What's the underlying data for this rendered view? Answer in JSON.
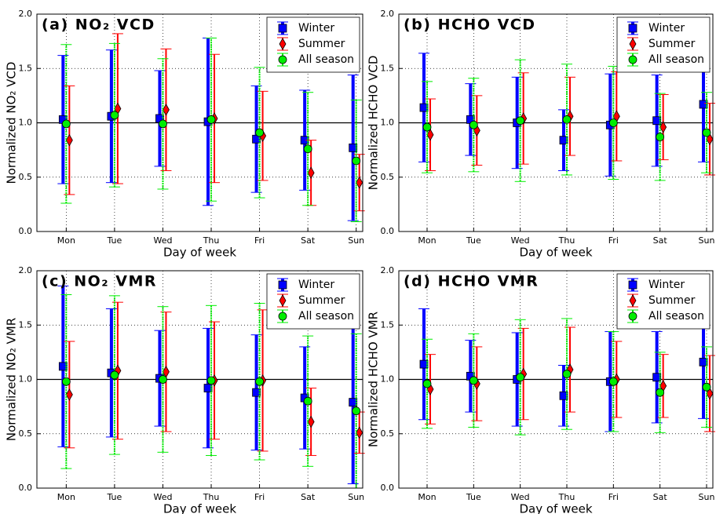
{
  "chart_data": [
    {
      "type": "errorbar",
      "title": "(a) NO₂ VCD",
      "xlabel": "Day of week",
      "ylabel": "Normalized NO₂ VCD",
      "categories": [
        "Mon",
        "Tue",
        "Wed",
        "Thu",
        "Fri",
        "Sat",
        "Sun"
      ],
      "series": [
        {
          "name": "Winter",
          "color": "#0000ff",
          "marker": "square",
          "values": [
            1.03,
            1.06,
            1.04,
            1.01,
            0.85,
            0.84,
            0.77
          ],
          "errors": [
            0.59,
            0.61,
            0.44,
            0.77,
            0.49,
            0.46,
            0.67
          ]
        },
        {
          "name": "Summer",
          "color": "#ff0000",
          "marker": "diamond",
          "values": [
            0.84,
            1.13,
            1.12,
            1.04,
            0.88,
            0.54,
            0.45
          ],
          "errors": [
            0.5,
            0.69,
            0.56,
            0.59,
            0.41,
            0.3,
            0.26
          ]
        },
        {
          "name": "All season",
          "color": "#00ee00",
          "marker": "circle",
          "values": [
            0.99,
            1.07,
            0.99,
            1.03,
            0.91,
            0.76,
            0.65
          ],
          "errors": [
            0.73,
            0.66,
            0.6,
            0.75,
            0.6,
            0.52,
            0.56
          ]
        }
      ],
      "ylim": [
        0,
        2
      ],
      "yticks": [
        {
          "value": 0,
          "label": "0.0"
        },
        0.5,
        {
          "value": 1,
          "label": "1.0"
        },
        1.5,
        {
          "value": 2,
          "label": "2.0"
        }
      ],
      "hline": 1,
      "grid": true,
      "legend": "upper right"
    },
    {
      "type": "errorbar",
      "title": "(b) HCHO VCD",
      "xlabel": "Day of week",
      "ylabel": "Normalized HCHO VCD",
      "categories": [
        "Mon",
        "Tue",
        "Wed",
        "Thu",
        "Fri",
        "Sat",
        "Sun"
      ],
      "series": [
        {
          "name": "Winter",
          "color": "#0000ff",
          "marker": "square",
          "values": [
            1.14,
            1.03,
            1.0,
            0.84,
            0.98,
            1.02,
            1.17
          ],
          "errors": [
            0.5,
            0.33,
            0.42,
            0.28,
            0.47,
            0.42,
            0.53
          ]
        },
        {
          "name": "Summer",
          "color": "#ff0000",
          "marker": "diamond",
          "values": [
            0.89,
            0.93,
            1.04,
            1.06,
            1.06,
            0.96,
            0.85
          ],
          "errors": [
            0.33,
            0.32,
            0.42,
            0.36,
            0.41,
            0.3,
            0.33
          ]
        },
        {
          "name": "All season",
          "color": "#00ee00",
          "marker": "circle",
          "values": [
            0.96,
            0.98,
            1.02,
            1.03,
            1.0,
            0.87,
            0.91
          ],
          "errors": [
            0.42,
            0.43,
            0.56,
            0.51,
            0.52,
            0.4,
            0.37
          ]
        }
      ],
      "ylim": [
        0,
        2
      ],
      "yticks": [
        {
          "value": 0,
          "label": "0.0"
        },
        0.5,
        {
          "value": 1,
          "label": "1.0"
        },
        1.5,
        {
          "value": 2,
          "label": "2.0"
        }
      ],
      "hline": 1,
      "grid": true,
      "legend": "upper right"
    },
    {
      "type": "errorbar",
      "title": "(c) NO₂ VMR",
      "xlabel": "Day of week",
      "ylabel": "Normalized NO₂ VMR",
      "categories": [
        "Mon",
        "Tue",
        "Wed",
        "Thu",
        "Fri",
        "Sat",
        "Sun"
      ],
      "series": [
        {
          "name": "Winter",
          "color": "#0000ff",
          "marker": "square",
          "values": [
            1.12,
            1.06,
            1.01,
            0.92,
            0.88,
            0.83,
            0.79
          ],
          "errors": [
            0.74,
            0.59,
            0.44,
            0.55,
            0.53,
            0.47,
            0.75
          ]
        },
        {
          "name": "Summer",
          "color": "#ff0000",
          "marker": "diamond",
          "values": [
            0.86,
            1.08,
            1.07,
            0.99,
            0.99,
            0.61,
            0.51
          ],
          "errors": [
            0.49,
            0.63,
            0.55,
            0.54,
            0.65,
            0.31,
            0.19
          ]
        },
        {
          "name": "All season",
          "color": "#00ee00",
          "marker": "circle",
          "values": [
            0.98,
            1.04,
            1.0,
            0.99,
            0.98,
            0.8,
            0.71
          ],
          "errors": [
            0.8,
            0.73,
            0.67,
            0.69,
            0.72,
            0.6,
            0.71
          ]
        }
      ],
      "ylim": [
        0,
        2
      ],
      "yticks": [
        {
          "value": 0,
          "label": "0.0"
        },
        0.5,
        {
          "value": 1,
          "label": "1.0"
        },
        1.5,
        {
          "value": 2,
          "label": "2.0"
        }
      ],
      "hline": 1,
      "grid": true,
      "legend": "upper right"
    },
    {
      "type": "errorbar",
      "title": "(d) HCHO VMR",
      "xlabel": "Day of week",
      "ylabel": "Normalized HCHO VMR",
      "categories": [
        "Mon",
        "Tue",
        "Wed",
        "Thu",
        "Fri",
        "Sat",
        "Sun"
      ],
      "series": [
        {
          "name": "Winter",
          "color": "#0000ff",
          "marker": "square",
          "values": [
            1.14,
            1.03,
            1.0,
            0.85,
            0.98,
            1.02,
            1.16
          ],
          "errors": [
            0.51,
            0.33,
            0.43,
            0.28,
            0.46,
            0.42,
            0.52
          ]
        },
        {
          "name": "Summer",
          "color": "#ff0000",
          "marker": "diamond",
          "values": [
            0.91,
            0.96,
            1.05,
            1.09,
            1.0,
            0.94,
            0.87
          ],
          "errors": [
            0.32,
            0.34,
            0.42,
            0.39,
            0.35,
            0.29,
            0.35
          ]
        },
        {
          "name": "All season",
          "color": "#00ee00",
          "marker": "circle",
          "values": [
            0.96,
            0.99,
            1.02,
            1.05,
            0.98,
            0.88,
            0.93
          ],
          "errors": [
            0.41,
            0.43,
            0.53,
            0.51,
            0.46,
            0.37,
            0.37
          ]
        }
      ],
      "ylim": [
        0,
        2
      ],
      "yticks": [
        {
          "value": 0,
          "label": "0.0"
        },
        0.5,
        {
          "value": 1,
          "label": "1.0"
        },
        1.5,
        {
          "value": 2,
          "label": "2.0"
        }
      ],
      "hline": 1,
      "grid": true,
      "legend": "upper right"
    }
  ]
}
